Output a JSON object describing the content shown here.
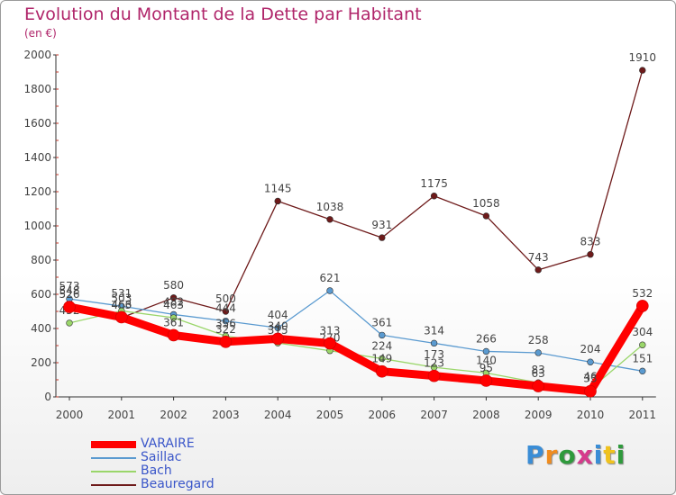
{
  "title": "Evolution du Montant de la Dette par Habitant",
  "subtitle": "(en €)",
  "logo": {
    "letters": [
      "P",
      "r",
      "o",
      "x",
      "i",
      "t",
      "i"
    ],
    "colors": [
      "#3a8dd6",
      "#f08c1e",
      "#2f9a3c",
      "#d63a8c",
      "#3a8dd6",
      "#f0c21e",
      "#2f9a3c"
    ]
  },
  "chart_data": {
    "type": "line",
    "categories": [
      "2000",
      "2001",
      "2002",
      "2003",
      "2004",
      "2005",
      "2006",
      "2007",
      "2008",
      "2009",
      "2010",
      "2011"
    ],
    "ylim": [
      0,
      2000
    ],
    "yticks": [
      "0",
      "200",
      "400",
      "600",
      "800",
      "1000",
      "1200",
      "1400",
      "1600",
      "1800",
      "2000"
    ],
    "grid": false,
    "legend_position": "bottom-left",
    "series": [
      {
        "name": "Beauregard",
        "color": "#6e1a1a",
        "width": 1.3,
        "values": [
          548,
          463,
          580,
          500,
          1145,
          1038,
          931,
          1175,
          1058,
          743,
          833,
          1910
        ],
        "labels": [
          "548",
          "463",
          "580",
          "500",
          "1145",
          "1038",
          "931",
          "1175",
          "1058",
          "743",
          "833",
          "1910"
        ]
      },
      {
        "name": "Saillac",
        "color": "#5a9ad0",
        "width": 1.3,
        "values": [
          573,
          531,
          482,
          444,
          404,
          621,
          361,
          314,
          266,
          258,
          204,
          151
        ],
        "labels": [
          "573",
          "531",
          "482",
          "444",
          "404",
          "621",
          "361",
          "314",
          "266",
          "258",
          "204",
          "151"
        ]
      },
      {
        "name": "Bach",
        "color": "#9ad66a",
        "width": 1.3,
        "values": [
          432,
          503,
          463,
          356,
          315,
          270,
          224,
          173,
          140,
          83,
          46,
          304
        ],
        "labels": [
          "432",
          "503",
          "463",
          "356",
          "315",
          "270",
          "224",
          "173",
          "140",
          "83",
          "46",
          "304"
        ]
      },
      {
        "name": "VARAIRE",
        "color": "#ff0000",
        "width": 9,
        "values": [
          526,
          466,
          361,
          322,
          340,
          313,
          149,
          123,
          95,
          63,
          33,
          532
        ],
        "labels": [
          "526",
          "466",
          "361",
          "322",
          "340",
          "313",
          "149",
          "123",
          "95",
          "63",
          "33",
          "532"
        ]
      }
    ]
  }
}
